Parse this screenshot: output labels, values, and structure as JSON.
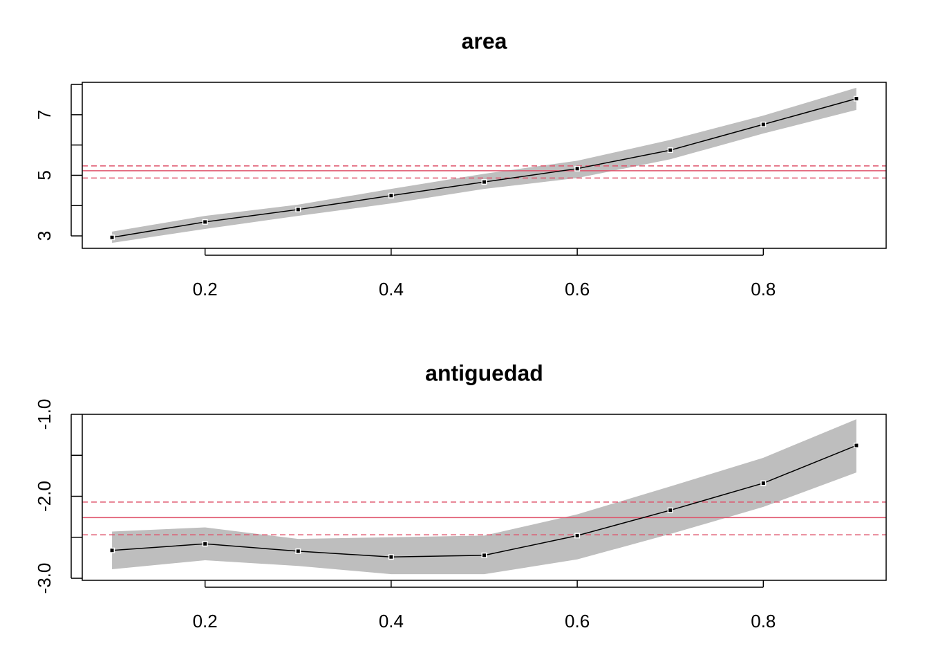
{
  "chart_data": [
    {
      "type": "line",
      "title": "area",
      "x": [
        0.1,
        0.2,
        0.3,
        0.4,
        0.5,
        0.6,
        0.7,
        0.8,
        0.9
      ],
      "values": [
        2.95,
        3.46,
        3.87,
        4.33,
        4.78,
        5.22,
        5.83,
        6.68,
        7.53
      ],
      "band_lower": [
        2.77,
        3.23,
        3.66,
        4.07,
        4.55,
        4.91,
        5.53,
        6.38,
        7.16
      ],
      "band_upper": [
        3.14,
        3.66,
        4.03,
        4.55,
        5.05,
        5.48,
        6.17,
        6.97,
        7.89
      ],
      "ref_line": 5.15,
      "ref_ci": [
        4.91,
        5.31
      ],
      "color": "#000000",
      "band_color": "#bebebe",
      "ref_color": "#df536b",
      "xlim": [
        0.068,
        0.932
      ],
      "ylim": [
        2.59,
        8.07
      ],
      "xticks": [
        0.2,
        0.4,
        0.6,
        0.8
      ],
      "yticks": [
        3,
        5,
        7
      ],
      "minor_yticks": [
        4,
        6,
        8
      ]
    },
    {
      "type": "line",
      "title": "antiguedad",
      "x": [
        0.1,
        0.2,
        0.3,
        0.4,
        0.5,
        0.6,
        0.7,
        0.8,
        0.9
      ],
      "values": [
        -2.66,
        -2.58,
        -2.67,
        -2.74,
        -2.72,
        -2.48,
        -2.17,
        -1.84,
        -1.38
      ],
      "band_lower": [
        -2.89,
        -2.78,
        -2.85,
        -2.95,
        -2.95,
        -2.77,
        -2.46,
        -2.13,
        -1.71
      ],
      "band_upper": [
        -2.43,
        -2.38,
        -2.52,
        -2.5,
        -2.48,
        -2.22,
        -1.88,
        -1.53,
        -1.06
      ],
      "ref_line": -2.26,
      "ref_ci": [
        -2.47,
        -2.07
      ],
      "color": "#000000",
      "band_color": "#bebebe",
      "ref_color": "#df536b",
      "xlim": [
        0.068,
        0.932
      ],
      "ylim": [
        -3.025,
        -1.0
      ],
      "xticks": [
        0.2,
        0.4,
        0.6,
        0.8
      ],
      "yticks": [
        {
          "value": -1,
          "label": "-1.0"
        },
        {
          "value": -2,
          "label": "-2.0"
        },
        {
          "value": -3,
          "label": "-3.0"
        }
      ],
      "minor_yticks": [
        -1.5,
        -2.5
      ]
    }
  ]
}
